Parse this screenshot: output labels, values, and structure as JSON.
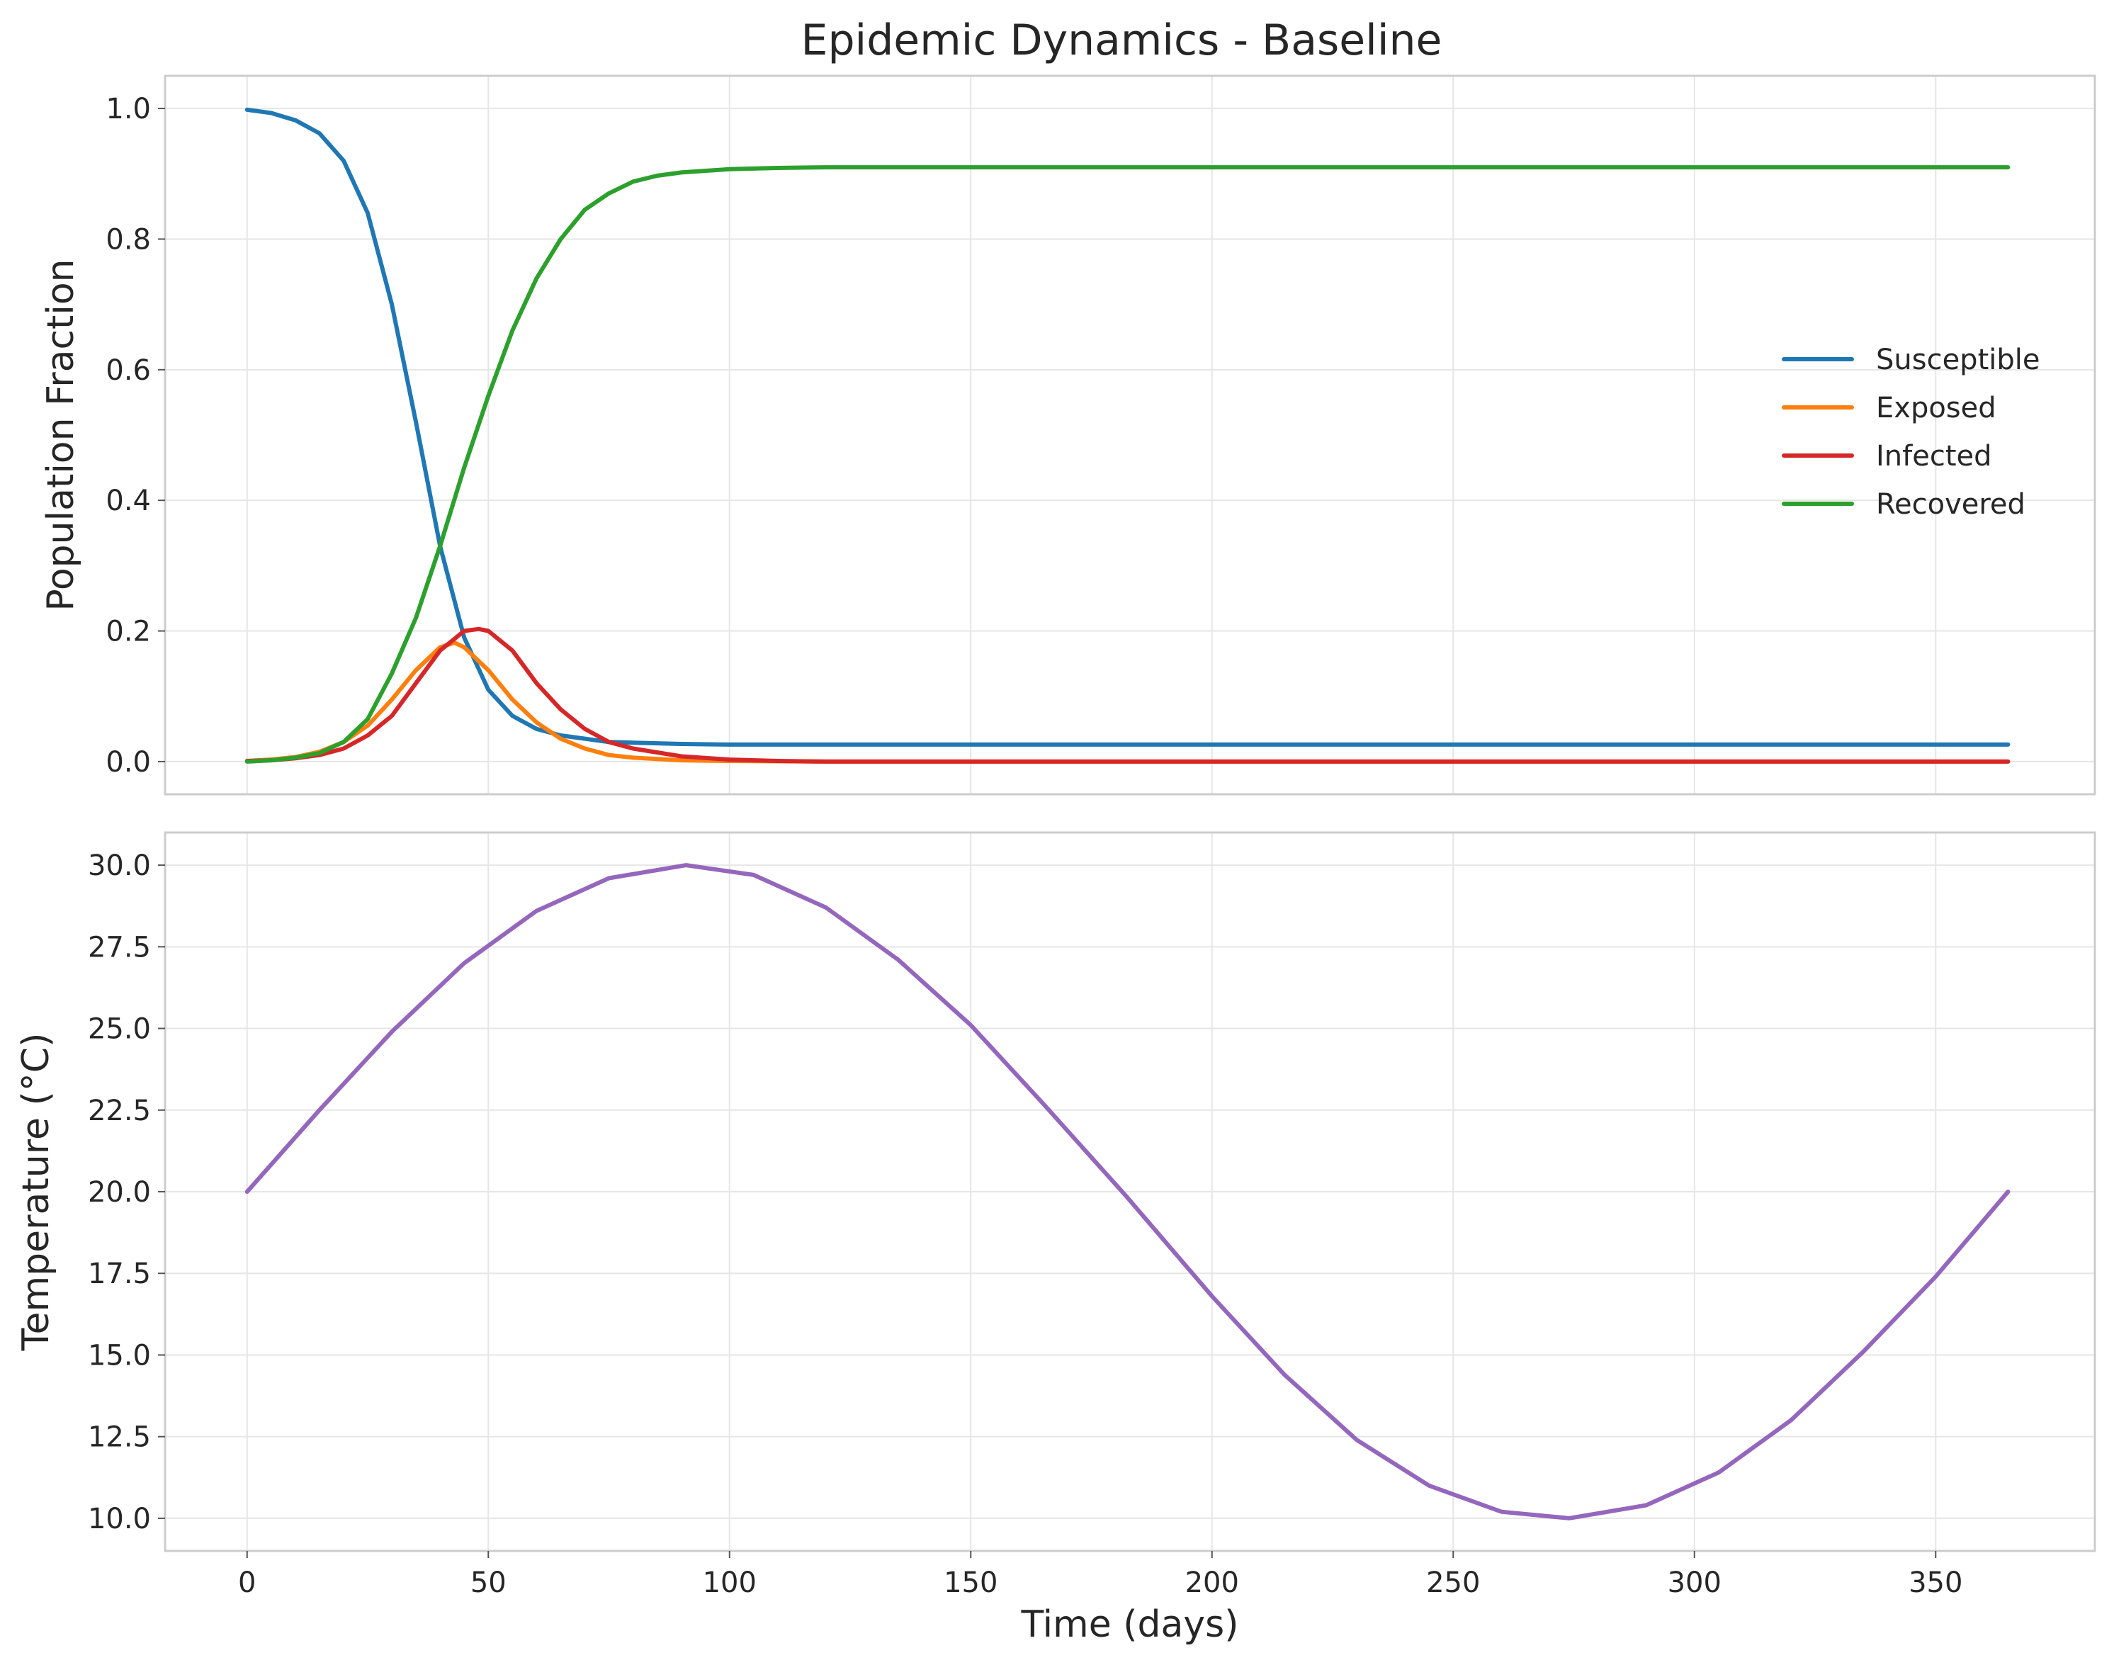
{
  "chart_data": [
    {
      "type": "line",
      "title": "Epidemic Dynamics - Baseline",
      "xlabel": "",
      "ylabel": "Population Fraction",
      "xlim": [
        -17,
        383
      ],
      "ylim": [
        -0.05,
        1.05
      ],
      "xticks": [
        0,
        50,
        100,
        150,
        200,
        250,
        300,
        350
      ],
      "xtick_labels_shown": false,
      "yticks": [
        0.0,
        0.2,
        0.4,
        0.6,
        0.8,
        1.0
      ],
      "ytick_labels": [
        "0.0",
        "0.2",
        "0.4",
        "0.6",
        "0.8",
        "1.0"
      ],
      "grid": true,
      "legend_position": "center-right",
      "series": [
        {
          "name": "Susceptible",
          "color": "#1f77b4",
          "x": [
            0,
            5,
            10,
            15,
            20,
            25,
            30,
            35,
            40,
            45,
            50,
            55,
            60,
            65,
            70,
            75,
            80,
            90,
            100,
            120,
            150,
            200,
            250,
            300,
            365
          ],
          "y": [
            0.998,
            0.993,
            0.982,
            0.962,
            0.92,
            0.84,
            0.7,
            0.52,
            0.33,
            0.19,
            0.11,
            0.07,
            0.05,
            0.04,
            0.035,
            0.03,
            0.029,
            0.027,
            0.026,
            0.026,
            0.026,
            0.026,
            0.026,
            0.026,
            0.026
          ]
        },
        {
          "name": "Exposed",
          "color": "#ff7f0e",
          "x": [
            0,
            5,
            10,
            15,
            20,
            25,
            30,
            35,
            40,
            43,
            45,
            50,
            55,
            60,
            65,
            70,
            75,
            80,
            90,
            100,
            120,
            150,
            200,
            250,
            300,
            365
          ],
          "y": [
            0.001,
            0.003,
            0.007,
            0.015,
            0.03,
            0.055,
            0.095,
            0.14,
            0.175,
            0.182,
            0.175,
            0.14,
            0.095,
            0.06,
            0.035,
            0.02,
            0.01,
            0.006,
            0.002,
            0.001,
            0.0,
            0.0,
            0.0,
            0.0,
            0.0,
            0.0
          ]
        },
        {
          "name": "Infected",
          "color": "#d62728",
          "x": [
            0,
            5,
            10,
            15,
            20,
            25,
            30,
            35,
            40,
            45,
            48,
            50,
            55,
            60,
            65,
            70,
            75,
            80,
            90,
            100,
            110,
            120,
            150,
            200,
            250,
            300,
            365
          ],
          "y": [
            0.001,
            0.002,
            0.005,
            0.01,
            0.02,
            0.04,
            0.07,
            0.12,
            0.17,
            0.2,
            0.203,
            0.2,
            0.17,
            0.12,
            0.08,
            0.05,
            0.03,
            0.02,
            0.008,
            0.003,
            0.001,
            0.0,
            0.0,
            0.0,
            0.0,
            0.0,
            0.0
          ]
        },
        {
          "name": "Recovered",
          "color": "#2ca02c",
          "x": [
            0,
            5,
            10,
            15,
            20,
            25,
            30,
            35,
            40,
            45,
            50,
            55,
            60,
            65,
            70,
            75,
            80,
            85,
            90,
            100,
            110,
            120,
            150,
            200,
            250,
            300,
            365
          ],
          "y": [
            0.0,
            0.002,
            0.006,
            0.013,
            0.03,
            0.065,
            0.135,
            0.22,
            0.33,
            0.45,
            0.56,
            0.66,
            0.74,
            0.8,
            0.845,
            0.87,
            0.888,
            0.897,
            0.902,
            0.907,
            0.909,
            0.91,
            0.91,
            0.91,
            0.91,
            0.91,
            0.91
          ]
        }
      ]
    },
    {
      "type": "line",
      "title": "",
      "xlabel": "Time (days)",
      "ylabel": "Temperature (°C)",
      "xlim": [
        -17,
        383
      ],
      "ylim": [
        9.0,
        31.0
      ],
      "xticks": [
        0,
        50,
        100,
        150,
        200,
        250,
        300,
        350
      ],
      "xtick_labels": [
        "0",
        "50",
        "100",
        "150",
        "200",
        "250",
        "300",
        "350"
      ],
      "yticks": [
        10.0,
        12.5,
        15.0,
        17.5,
        20.0,
        22.5,
        25.0,
        27.5,
        30.0
      ],
      "ytick_labels": [
        "10.0",
        "12.5",
        "15.0",
        "17.5",
        "20.0",
        "22.5",
        "25.0",
        "27.5",
        "30.0"
      ],
      "grid": true,
      "series": [
        {
          "color": "#9467bd",
          "x": [
            0,
            15,
            30,
            45,
            60,
            75,
            91,
            105,
            120,
            135,
            150,
            165,
            182,
            200,
            215,
            230,
            245,
            260,
            274,
            290,
            305,
            320,
            335,
            350,
            365
          ],
          "y": [
            20.0,
            22.5,
            24.9,
            27.0,
            28.6,
            29.6,
            30.0,
            29.7,
            28.7,
            27.1,
            25.1,
            22.7,
            19.9,
            16.8,
            14.4,
            12.4,
            11.0,
            10.2,
            10.0,
            10.4,
            11.4,
            13.0,
            15.1,
            17.4,
            20.0
          ]
        }
      ]
    }
  ]
}
